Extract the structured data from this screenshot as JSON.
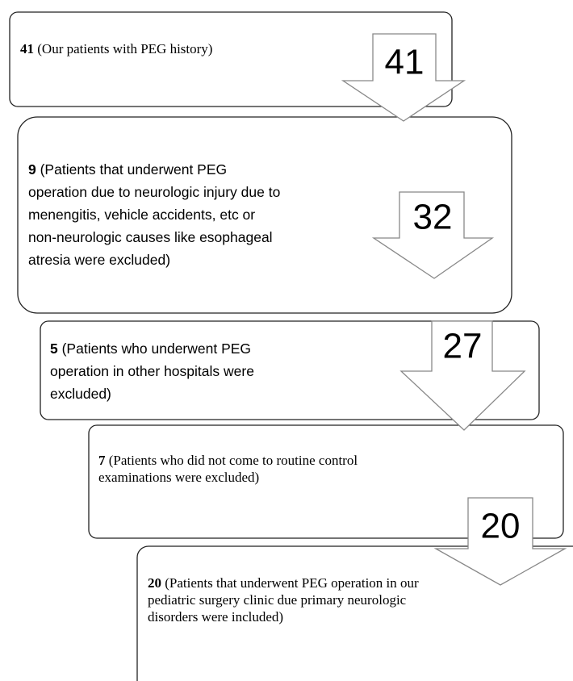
{
  "boxes": [
    {
      "count": "41",
      "text": "(Our patients with PEG history)"
    },
    {
      "count": "9",
      "text": "(Patients that underwent PEG operation due to neurologic injury due to menengitis, vehicle accidents, etc or non-neurologic causes like esophageal atresia were excluded)"
    },
    {
      "count": "5",
      "text": "(Patients who underwent PEG operation in other hospitals were excluded)"
    },
    {
      "count": "7",
      "text": "(Patients who did not come to routine control examinations were excluded)"
    },
    {
      "count": "20",
      "text": "(Patients that underwent PEG operation in our pediatric surgery clinic due primary neurologic disorders were included)"
    }
  ],
  "arrows": [
    "41",
    "32",
    "27",
    "20"
  ]
}
